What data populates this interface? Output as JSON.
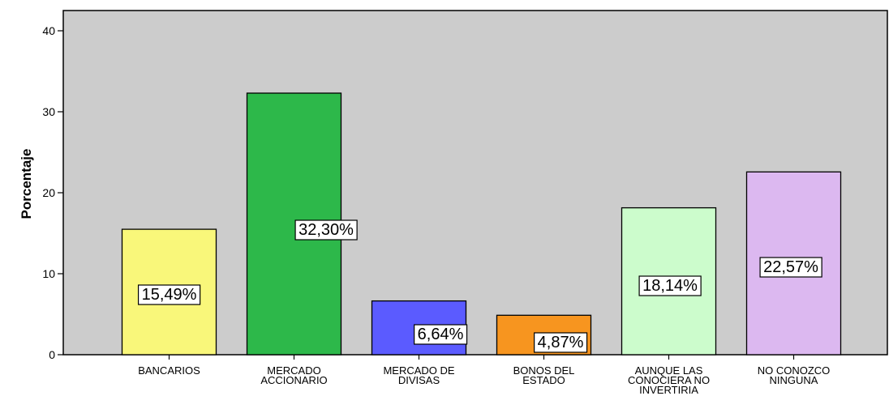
{
  "chart_data": {
    "type": "bar",
    "ylabel": "Porcentaje",
    "xlabel": "",
    "ylim": [
      0,
      40
    ],
    "yticks": [
      0,
      10,
      20,
      30,
      40
    ],
    "grid": false,
    "background_color": "#cccccc",
    "categories": [
      [
        "BANCARIOS"
      ],
      [
        "MERCADO",
        "ACCIONARIO"
      ],
      [
        "MERCADO DE",
        "DIVISAS"
      ],
      [
        "BONOS DEL",
        "ESTADO"
      ],
      [
        "AUNQUE LAS",
        "CONOCIERA NO",
        "INVERTIRIA"
      ],
      [
        "NO CONOZCO",
        "NINGUNA"
      ]
    ],
    "values": [
      15.49,
      32.3,
      6.64,
      4.87,
      18.14,
      22.57
    ],
    "data_labels": [
      "15,49%",
      "32,30%",
      "6,64%",
      "4,87%",
      "18,14%",
      "22,57%"
    ],
    "colors": [
      "#f9f77a",
      "#2db84a",
      "#5b5bff",
      "#f7951f",
      "#ccfccc",
      "#dcb8f0"
    ]
  }
}
